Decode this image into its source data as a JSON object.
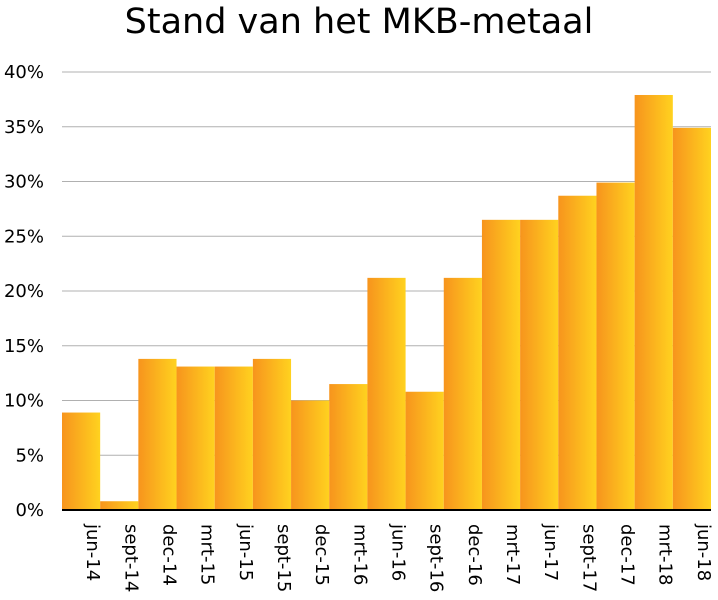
{
  "chart_data": {
    "type": "bar",
    "title": "Stand van het MKB-metaal",
    "xlabel": "",
    "ylabel": "",
    "categories": [
      "jun-14",
      "sept-14",
      "dec-14",
      "mrt-15",
      "jun-15",
      "sept-15",
      "dec-15",
      "mrt-16",
      "jun-16",
      "sept-16",
      "dec-16",
      "mrt-17",
      "jun-17",
      "sept-17",
      "dec-17",
      "mrt-18",
      "jun-18"
    ],
    "values": [
      8.9,
      0.8,
      13.8,
      13.1,
      13.1,
      13.8,
      10.0,
      11.5,
      21.2,
      10.8,
      21.2,
      26.5,
      26.5,
      28.7,
      29.9,
      37.9,
      34.9
    ],
    "ylim": [
      0,
      40
    ],
    "yticks": [
      "0%",
      "5%",
      "10%",
      "15%",
      "20%",
      "25%",
      "30%",
      "35%",
      "40%"
    ],
    "unit": "%",
    "grid": true,
    "colors": {
      "bar_light": "#FFD21F",
      "bar_dark": "#F7941D",
      "grid": "#B0B0B0",
      "axis": "#000000"
    }
  }
}
